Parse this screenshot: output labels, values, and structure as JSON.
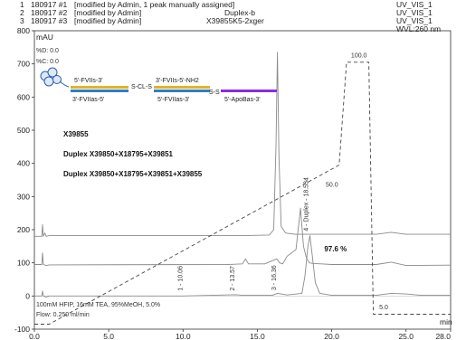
{
  "header": {
    "lines": [
      {
        "marker": "1",
        "run": "180917 #1",
        "note": "[modified by Admin, 1 peak manually assigned]",
        "sample": "",
        "channel": "UV_VIS_1"
      },
      {
        "marker": "2",
        "run": "180917 #2",
        "note": "[modified by Admin]",
        "sample": "Duplex-b",
        "channel": "UV_VIS_1"
      },
      {
        "marker": "3",
        "run": "180917 #3",
        "note": "[modified by Admin]",
        "sample": "X39855K5-2xger",
        "channel": "UV_VIS_1"
      }
    ],
    "wavelength": "WVL:260 nm"
  },
  "chart_data": {
    "type": "line",
    "xlabel": "min",
    "ylabel": "mAU",
    "xlim": [
      0,
      28
    ],
    "ylim": [
      -100,
      800
    ],
    "xticks": [
      "0.0",
      "5.0",
      "10.0",
      "15.0",
      "20.0",
      "25.0",
      "28.0"
    ],
    "yticks": [
      "-100",
      "0",
      "100",
      "200",
      "300",
      "400",
      "500",
      "600",
      "700",
      "800"
    ],
    "series": [
      {
        "name": "",
        "color": "#8a8a8a",
        "x": [
          0,
          0.5,
          0.55,
          0.6,
          0.7,
          0.8,
          1.0,
          14.0,
          15.8,
          16.1,
          16.25,
          16.35,
          16.45,
          16.6,
          16.9,
          17.5,
          23.0,
          24.0,
          25.0,
          26.0,
          28.0
        ],
        "y": [
          180,
          180,
          215,
          180,
          190,
          180,
          182,
          182,
          184,
          200,
          450,
          735,
          420,
          210,
          190,
          186,
          186,
          192,
          186,
          186,
          186
        ]
      },
      {
        "name": "",
        "color": "#8a8a8a",
        "x": [
          0,
          0.5,
          0.55,
          0.6,
          0.8,
          1.0,
          13.0,
          14.0,
          14.2,
          14.4,
          15.5,
          16.3,
          16.5,
          16.7,
          17.0,
          17.6,
          17.9,
          18.1,
          18.3,
          18.5,
          18.8,
          19.3,
          20.0,
          23.0,
          24.0,
          25.0,
          28.0
        ],
        "y": [
          95,
          95,
          130,
          95,
          92,
          94,
          95,
          97,
          112,
          97,
          97,
          112,
          100,
          97,
          120,
          140,
          265,
          150,
          115,
          100,
          98,
          97,
          95,
          95,
          102,
          92,
          93
        ]
      },
      {
        "name": "",
        "color": "#8a8a8a",
        "x": [
          0,
          0.5,
          0.55,
          0.6,
          0.8,
          1.0,
          10.0,
          13.57,
          14.0,
          16.0,
          16.36,
          17.0,
          18.0,
          18.2,
          18.4,
          18.534,
          18.7,
          18.9,
          19.2,
          20.0,
          23.0,
          24.0,
          25.0,
          26.0,
          28.0
        ],
        "y": [
          0,
          0,
          15,
          0,
          -3,
          0,
          0,
          4,
          2,
          2,
          8,
          3,
          8,
          60,
          150,
          182,
          120,
          40,
          8,
          2,
          2,
          8,
          6,
          2,
          2
        ]
      },
      {
        "name": "%B gradient",
        "color": "#444444",
        "dash": "4,3",
        "x": [
          0,
          1.0,
          20.5,
          21.0,
          22.5,
          22.8,
          28.0
        ],
        "y": [
          -85,
          -85,
          395,
          705,
          705,
          -55,
          -55
        ]
      }
    ],
    "gradient_labels": [
      {
        "text": "100.0",
        "x": 21.3,
        "y": 720
      },
      {
        "text": "50.0",
        "x": 19.6,
        "y": 330
      },
      {
        "text": "5.0",
        "x": 23.2,
        "y": -40
      }
    ],
    "peak_labels": [
      {
        "text": "1 - 10.06",
        "x": 10.06,
        "y": 10
      },
      {
        "text": "2 - 13.57",
        "x": 13.57,
        "y": 10
      },
      {
        "text": "3 - 16.36",
        "x": 16.36,
        "y": 12
      },
      {
        "text": "4 - Duplex - 18.534",
        "x": 18.534,
        "y": 190
      }
    ],
    "percent_label": {
      "text": "97.6 %",
      "x": 19.5,
      "y": 135
    },
    "method_text": [
      "%D: 0.0",
      "%C: 0.0"
    ],
    "mobile_phase": "100mM HFIP, 16mM TEA, 95%MeOH, 5.0%",
    "flow": "Flow: 0.250 ml/min"
  },
  "legend_items": [
    "X39855",
    "Duplex X39850+X18795+X39851",
    "Duplex X39850+X18795+X39851+X39855"
  ],
  "duplex_diagram": {
    "strand_left_top": "5'-FVIIs-3'",
    "strand_left_bottom": "3'-FVIIas-5'",
    "linker": "S-CL-S",
    "strand_mid_top": "3'-FVIIs-5'-NH2",
    "strand_mid_bottom": "5'-FVIIas-3'",
    "disulfide": "S-S",
    "strand_right": "5'-ApoBas-3'",
    "colors": {
      "sense": "#e8b21a",
      "antisense": "#2b7fd0",
      "apob": "#8a2be2"
    }
  }
}
